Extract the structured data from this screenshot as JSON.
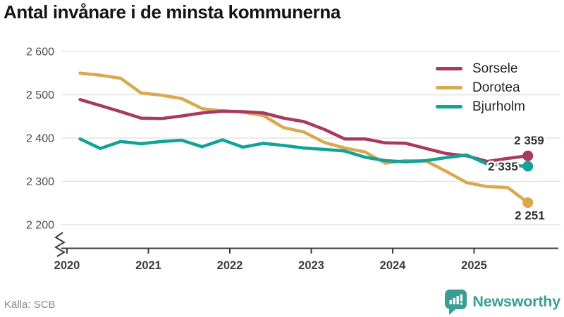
{
  "title": "Antal invånare i de minsta kommunerna",
  "source": "Källa: SCB",
  "branding": {
    "name": "Newsworthy",
    "color": "#3a9e96"
  },
  "chart_data": {
    "type": "line",
    "title": "Antal invånare i de minsta kommunerna",
    "xlabel": "",
    "ylabel": "",
    "grid": "horizontal-only",
    "axis_break_at_bottom": true,
    "legend_position": "top-right",
    "xlim": [
      2019.93,
      2026.06
    ],
    "ylim": [
      2200,
      2620
    ],
    "xticks": [
      {
        "value": 2020,
        "label": "2020"
      },
      {
        "value": 2021,
        "label": "2021"
      },
      {
        "value": 2022,
        "label": "2022"
      },
      {
        "value": 2023,
        "label": "2023"
      },
      {
        "value": 2024,
        "label": "2024"
      },
      {
        "value": 2025,
        "label": "2025"
      }
    ],
    "yticks": [
      {
        "value": 2200,
        "label": "2 200"
      },
      {
        "value": 2300,
        "label": "2 300"
      },
      {
        "value": 2400,
        "label": "2 400"
      },
      {
        "value": 2500,
        "label": "2 500"
      },
      {
        "value": 2600,
        "label": "2 600"
      }
    ],
    "x_unit": "quarterly (2020 Q1 – 2025 Q3)",
    "x": [
      2020.16,
      2020.41,
      2020.66,
      2020.91,
      2021.16,
      2021.41,
      2021.66,
      2021.91,
      2022.16,
      2022.41,
      2022.66,
      2022.91,
      2023.16,
      2023.41,
      2023.66,
      2023.91,
      2024.16,
      2024.41,
      2024.66,
      2024.91,
      2025.16,
      2025.41,
      2025.66
    ],
    "series": [
      {
        "name": "Sorsele",
        "color": "#a63a5f",
        "end_label": "2 359",
        "values": [
          2489,
          2475,
          2461,
          2446,
          2445,
          2451,
          2458,
          2462,
          2461,
          2458,
          2446,
          2438,
          2420,
          2398,
          2398,
          2389,
          2388,
          2376,
          2364,
          2359,
          2346,
          2353,
          2359
        ]
      },
      {
        "name": "Dorotea",
        "color": "#d9a950",
        "end_label": "2 251",
        "values": [
          2550,
          2545,
          2538,
          2504,
          2499,
          2491,
          2468,
          2463,
          2460,
          2452,
          2424,
          2414,
          2390,
          2377,
          2368,
          2342,
          2348,
          2347,
          2323,
          2297,
          2288,
          2286,
          2251
        ]
      },
      {
        "name": "Bjurholm",
        "color": "#11a39a",
        "end_label": "2 335",
        "values": [
          2398,
          2376,
          2392,
          2387,
          2392,
          2395,
          2380,
          2396,
          2379,
          2388,
          2383,
          2377,
          2374,
          2370,
          2356,
          2348,
          2345,
          2348,
          2355,
          2361,
          2340,
          2337,
          2335
        ]
      }
    ]
  }
}
